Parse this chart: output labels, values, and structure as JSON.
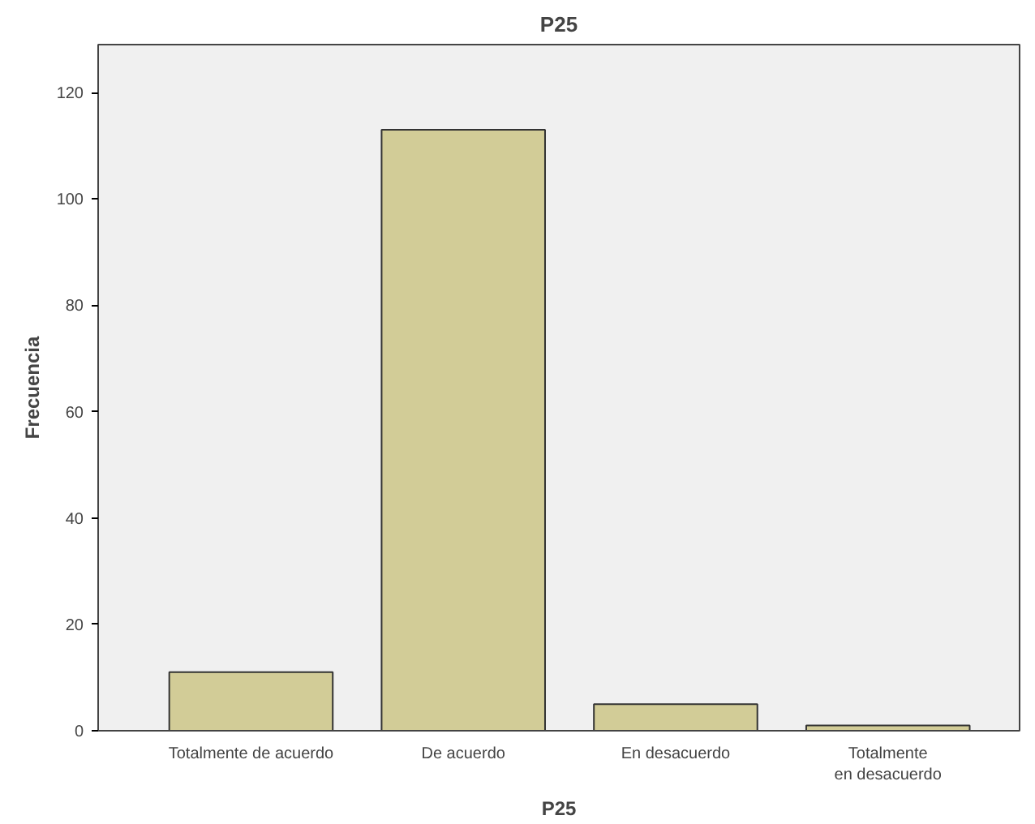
{
  "chart_data": {
    "type": "bar",
    "title": "P25",
    "xlabel": "P25",
    "ylabel": "Frecuencia",
    "categories": [
      "Totalmente de acuerdo",
      "De acuerdo",
      "En desacuerdo",
      "Totalmente en desacuerdo"
    ],
    "values": [
      11,
      113,
      5,
      1
    ],
    "color": "#d2cc97",
    "ylim": [
      0,
      129
    ],
    "yticks": [
      0,
      20,
      40,
      60,
      80,
      100,
      120
    ],
    "grid": false
  }
}
